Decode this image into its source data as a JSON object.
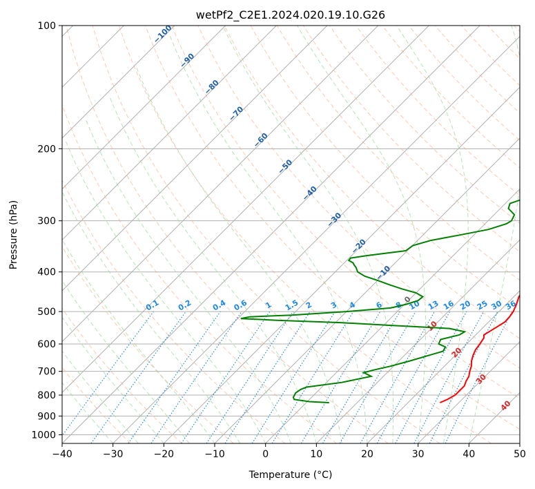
{
  "chart_data": {
    "type": "line",
    "chart_kind": "Skew-T log-P diagram",
    "title": "wetPf2_C2E1.2024.020.19.10.G26",
    "xlabel": "Temperature (°C)",
    "ylabel": "Pressure (hPa)",
    "xlim": [
      -40,
      50
    ],
    "ylim": [
      1050,
      100
    ],
    "x_ticks": [
      -40,
      -30,
      -20,
      -10,
      0,
      10,
      20,
      30,
      40,
      50
    ],
    "x_tick_labels": [
      "−40",
      "−30",
      "−20",
      "−10",
      "0",
      "10",
      "20",
      "30",
      "40",
      "50"
    ],
    "y_ticks": [
      100,
      200,
      300,
      400,
      500,
      600,
      700,
      800,
      900,
      1000
    ],
    "y_tick_labels": [
      "100",
      "200",
      "300",
      "400",
      "500",
      "600",
      "700",
      "800",
      "900",
      "1000"
    ],
    "series": [
      {
        "name": "Temperature",
        "color": "#ff0000",
        "points": [
          [
            835,
            26.3
          ],
          [
            820,
            27.1
          ],
          [
            800,
            27.8
          ],
          [
            760,
            27.8
          ],
          [
            740,
            27.2
          ],
          [
            720,
            26.8
          ],
          [
            700,
            26.0
          ],
          [
            680,
            25.3
          ],
          [
            660,
            24.3
          ],
          [
            640,
            23.5
          ],
          [
            620,
            22.9
          ],
          [
            600,
            22.6
          ],
          [
            580,
            22.2
          ],
          [
            570,
            21.6
          ],
          [
            560,
            22.0
          ],
          [
            545,
            22.6
          ],
          [
            530,
            23.2
          ],
          [
            515,
            23.1
          ],
          [
            500,
            22.8
          ],
          [
            480,
            22.0
          ],
          [
            460,
            21.0
          ],
          [
            440,
            20.5
          ],
          [
            420,
            20.1
          ],
          [
            400,
            19.8
          ],
          [
            370,
            19.7
          ],
          [
            345,
            19.6
          ],
          [
            320,
            19.3
          ],
          [
            300,
            18.8
          ],
          [
            275,
            18.3
          ],
          [
            250,
            17.6
          ],
          [
            225,
            16.7
          ],
          [
            200,
            15.6
          ],
          [
            180,
            14.8
          ],
          [
            165,
            14.2
          ],
          [
            150,
            13.2
          ],
          [
            140,
            12.5
          ],
          [
            130,
            11.7
          ]
        ]
      },
      {
        "name": "Dewpoint",
        "color": "#008000",
        "points": [
          [
            835,
            4.5
          ],
          [
            830,
            0.4
          ],
          [
            820,
            -3.0
          ],
          [
            810,
            -3.6
          ],
          [
            800,
            -3.8
          ],
          [
            790,
            -4.0
          ],
          [
            775,
            -3.7
          ],
          [
            765,
            -3.0
          ],
          [
            745,
            3.0
          ],
          [
            720,
            7.6
          ],
          [
            705,
            5.4
          ],
          [
            695,
            6.8
          ],
          [
            680,
            9.4
          ],
          [
            660,
            12.2
          ],
          [
            640,
            14.8
          ],
          [
            625,
            16.8
          ],
          [
            610,
            16.4
          ],
          [
            600,
            14.5
          ],
          [
            585,
            14.0
          ],
          [
            570,
            16.8
          ],
          [
            560,
            17.2
          ],
          [
            550,
            13.6
          ],
          [
            540,
            0.8
          ],
          [
            532,
            -9.0
          ],
          [
            525,
            -22.0
          ],
          [
            520,
            -29.4
          ],
          [
            515,
            -28.0
          ],
          [
            510,
            -20.0
          ],
          [
            500,
            -10.0
          ],
          [
            490,
            -2.0
          ],
          [
            480,
            0.3
          ],
          [
            470,
            1.9
          ],
          [
            460,
            2.1
          ],
          [
            450,
            0.0
          ],
          [
            440,
            -3.6
          ],
          [
            430,
            -6.8
          ],
          [
            420,
            -9.9
          ],
          [
            410,
            -13.3
          ],
          [
            400,
            -15.6
          ],
          [
            390,
            -16.8
          ],
          [
            385,
            -17.6
          ],
          [
            380,
            -18.3
          ],
          [
            375,
            -19.6
          ],
          [
            370,
            -19.7
          ],
          [
            365,
            -17.0
          ],
          [
            355,
            -10.3
          ],
          [
            345,
            -9.9
          ],
          [
            335,
            -7.4
          ],
          [
            325,
            -2.8
          ],
          [
            315,
            1.8
          ],
          [
            305,
            4.2
          ],
          [
            300,
            4.6
          ],
          [
            290,
            4.0
          ],
          [
            280,
            1.6
          ],
          [
            272,
            0.9
          ],
          [
            265,
            2.7
          ],
          [
            255,
            4.3
          ],
          [
            240,
            5.3
          ],
          [
            225,
            6.4
          ],
          [
            210,
            7.2
          ],
          [
            200,
            7.5
          ],
          [
            190,
            7.3
          ],
          [
            180,
            6.5
          ],
          [
            170,
            8.8
          ],
          [
            160,
            9.9
          ],
          [
            150,
            11.5
          ],
          [
            140,
            12.4
          ],
          [
            130,
            13.2
          ],
          [
            120,
            14.2
          ],
          [
            110,
            15.6
          ],
          [
            100,
            17.8
          ]
        ]
      }
    ],
    "dry_adiabat_labels": [
      "−100",
      "−90",
      "−80",
      "−70",
      "−60",
      "−50",
      "−40",
      "−30",
      "−20",
      "−10",
      "0",
      "10",
      "20",
      "30",
      "40"
    ],
    "mixing_ratio_labels": [
      "0.1",
      "0.2",
      "0.4",
      "0.6",
      "1",
      "1.5",
      "2",
      "3",
      "4",
      "6",
      "8",
      "10",
      "13",
      "16",
      "20",
      "25",
      "30",
      "36"
    ]
  }
}
